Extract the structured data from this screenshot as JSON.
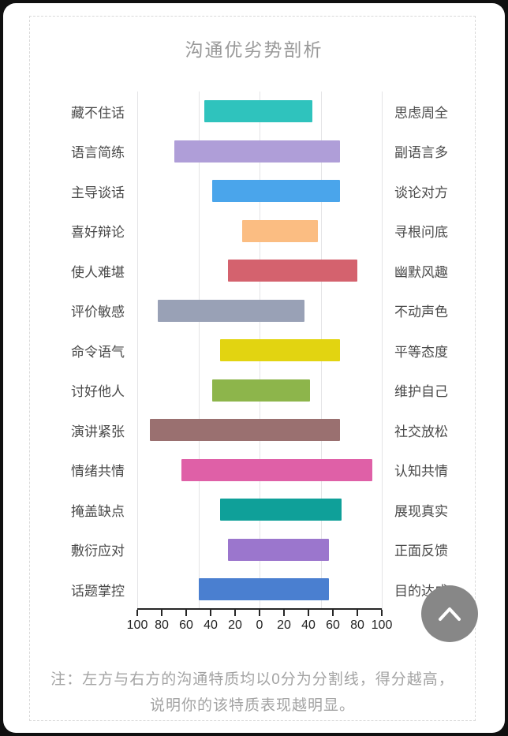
{
  "page": {
    "title": "沟通优劣势剖析",
    "note_line1": "注：左方与右方的沟通特质均以0分为分割线，得分越高，",
    "note_line2": "说明你的该特质表现越明显。"
  },
  "chart_data": {
    "type": "bar",
    "orientation": "horizontal-diverging",
    "title": "沟通优劣势剖析",
    "axis": {
      "min": -100,
      "max": 100,
      "tick_step": 20,
      "tick_labels": [
        "100",
        "80",
        "60",
        "40",
        "20",
        "0",
        "20",
        "40",
        "60",
        "80",
        "100"
      ],
      "gridlines_at": [
        -100,
        -50,
        0,
        50,
        100
      ],
      "grid_color": "#e4e4e6"
    },
    "rows": [
      {
        "left_label": "藏不住话",
        "right_label": "思虑周全",
        "left_score": 45,
        "right_score": 43,
        "color": "#2fc3bd"
      },
      {
        "left_label": "语言简练",
        "right_label": "副语言多",
        "left_score": 70,
        "right_score": 66,
        "color": "#af9ed8"
      },
      {
        "left_label": "主导谈话",
        "right_label": "谈论对方",
        "left_score": 39,
        "right_score": 66,
        "color": "#4aa5eb"
      },
      {
        "left_label": "喜好辩论",
        "right_label": "寻根问底",
        "left_score": 14,
        "right_score": 48,
        "color": "#fbbd82"
      },
      {
        "left_label": "使人难堪",
        "right_label": "幽默风趣",
        "left_score": 26,
        "right_score": 80,
        "color": "#d4626e"
      },
      {
        "left_label": "评价敏感",
        "right_label": "不动声色",
        "left_score": 83,
        "right_score": 37,
        "color": "#99a1b6"
      },
      {
        "left_label": "命令语气",
        "right_label": "平等态度",
        "left_score": 32,
        "right_score": 66,
        "color": "#e2d411"
      },
      {
        "left_label": "讨好他人",
        "right_label": "维护自己",
        "left_score": 39,
        "right_score": 41,
        "color": "#8db54b"
      },
      {
        "left_label": "演讲紧张",
        "right_label": "社交放松",
        "left_score": 90,
        "right_score": 66,
        "color": "#9a7070"
      },
      {
        "left_label": "情绪共情",
        "right_label": "认知共情",
        "left_score": 64,
        "right_score": 92,
        "color": "#df60a7"
      },
      {
        "left_label": "掩盖缺点",
        "right_label": "展现真实",
        "left_score": 32,
        "right_score": 67,
        "color": "#0fa099"
      },
      {
        "left_label": "敷衍应对",
        "right_label": "正面反馈",
        "left_score": 26,
        "right_score": 57,
        "color": "#9b76cd"
      },
      {
        "left_label": "话题掌控",
        "right_label": "目的达成",
        "left_score": 50,
        "right_score": 57,
        "color": "#4a7fd0"
      }
    ]
  },
  "fab": {
    "icon": "chevron-up",
    "color": "#878787"
  }
}
